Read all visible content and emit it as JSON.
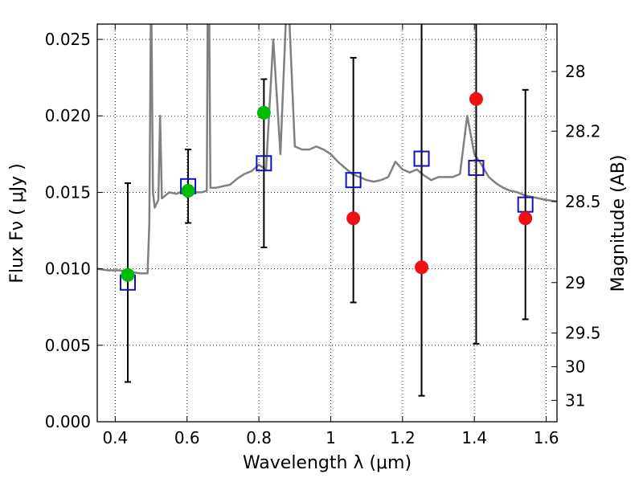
{
  "chart_data": {
    "type": "scatter",
    "title": "",
    "xlabel": "Wavelength  λ (μm)",
    "ylabel": "Flux  Fν  ( μJy )",
    "ylabel_right": "Magnitude (AB)",
    "xlim": [
      0.35,
      1.63
    ],
    "ylim": [
      0.0,
      0.026
    ],
    "grid": true,
    "grid_style": "dotted",
    "x_ticks": [
      0.4,
      0.6,
      0.8,
      1.0,
      1.2,
      1.4,
      1.6
    ],
    "x_tick_labels": [
      "0.4",
      "0.6",
      "0.8",
      "1",
      "1.2",
      "1.4",
      "1.6"
    ],
    "y_ticks": [
      0.0,
      0.005,
      0.01,
      0.015,
      0.02,
      0.025
    ],
    "y_tick_labels": [
      "0.000",
      "0.005",
      "0.010",
      "0.015",
      "0.020",
      "0.025"
    ],
    "right_ticks": [
      {
        "label": "28",
        "flux": 0.0229
      },
      {
        "label": "28.2",
        "flux": 0.019
      },
      {
        "label": "28.5",
        "flux": 0.0144
      },
      {
        "label": "29",
        "flux": 0.0091
      },
      {
        "label": "29.5",
        "flux": 0.0058
      },
      {
        "label": "30",
        "flux": 0.0036
      },
      {
        "label": "31",
        "flux": 0.0014
      }
    ],
    "model_spectrum": {
      "color": "#808080",
      "x": [
        0.35,
        0.38,
        0.41,
        0.44,
        0.47,
        0.49,
        0.495,
        0.5,
        0.505,
        0.51,
        0.52,
        0.525,
        0.53,
        0.55,
        0.57,
        0.59,
        0.6,
        0.62,
        0.64,
        0.655,
        0.658,
        0.661,
        0.665,
        0.68,
        0.7,
        0.72,
        0.74,
        0.76,
        0.78,
        0.8,
        0.82,
        0.84,
        0.86,
        0.88,
        0.9,
        0.92,
        0.94,
        0.96,
        0.98,
        1.0,
        1.02,
        1.04,
        1.06,
        1.08,
        1.1,
        1.12,
        1.14,
        1.16,
        1.18,
        1.2,
        1.22,
        1.24,
        1.26,
        1.28,
        1.3,
        1.32,
        1.34,
        1.36,
        1.38,
        1.4,
        1.42,
        1.44,
        1.46,
        1.48,
        1.5,
        1.52,
        1.54,
        1.56,
        1.58,
        1.6,
        1.63
      ],
      "y": [
        0.01,
        0.0099,
        0.0099,
        0.0098,
        0.0097,
        0.0097,
        0.013,
        0.029,
        0.015,
        0.014,
        0.0145,
        0.02,
        0.0146,
        0.015,
        0.0149,
        0.0151,
        0.0147,
        0.015,
        0.015,
        0.0151,
        0.029,
        0.029,
        0.0153,
        0.0153,
        0.0154,
        0.0155,
        0.0159,
        0.0162,
        0.0164,
        0.0168,
        0.0165,
        0.025,
        0.0175,
        0.029,
        0.018,
        0.0178,
        0.0178,
        0.018,
        0.0178,
        0.0175,
        0.017,
        0.0166,
        0.0162,
        0.016,
        0.0158,
        0.0157,
        0.0158,
        0.016,
        0.017,
        0.0165,
        0.0163,
        0.0165,
        0.0161,
        0.0158,
        0.016,
        0.016,
        0.016,
        0.0162,
        0.02,
        0.0175,
        0.0168,
        0.016,
        0.0156,
        0.0153,
        0.0151,
        0.015,
        0.0148,
        0.0147,
        0.0146,
        0.0145,
        0.0144
      ]
    },
    "series": [
      {
        "name": "",
        "marker": "open-square",
        "color": "#1010c0",
        "x": [
          0.435,
          0.603,
          0.814,
          1.063,
          1.253,
          1.405,
          1.542
        ],
        "y": [
          0.0091,
          0.0154,
          0.0169,
          0.0158,
          0.0172,
          0.0166,
          0.0142
        ],
        "err": [
          0.0065,
          0.0024,
          0.0055,
          0.008,
          0.0155,
          0.0115,
          0.0075
        ]
      },
      {
        "name": "",
        "marker": "circle",
        "color": "#00bb00",
        "x": [
          0.435,
          0.603,
          0.814
        ],
        "y": [
          0.0096,
          0.0151,
          0.0202
        ]
      },
      {
        "name": "",
        "marker": "circle",
        "color": "#ee1111",
        "x": [
          1.063,
          1.253,
          1.405,
          1.542
        ],
        "y": [
          0.0133,
          0.0101,
          0.0211,
          0.0133
        ]
      }
    ]
  }
}
